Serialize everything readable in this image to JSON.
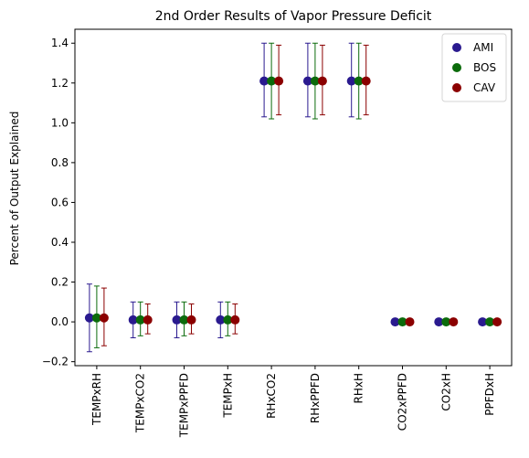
{
  "chart_data": {
    "type": "scatter",
    "title": "2nd Order Results of Vapor Pressure Deficit",
    "xlabel": "",
    "ylabel": "Percent of Output Explained",
    "categories": [
      "TEMPxRH",
      "TEMPxCO2",
      "TEMPxPPFD",
      "TEMPxH",
      "RHxCO2",
      "RHxPPFD",
      "RHxH",
      "CO2xPPFD",
      "CO2xH",
      "PPFDxH"
    ],
    "ylim": [
      -0.22,
      1.47
    ],
    "yticks": [
      -0.2,
      0.0,
      0.2,
      0.4,
      0.6,
      0.8,
      1.0,
      1.2,
      1.4
    ],
    "ytick_labels": [
      "−0.2",
      "0.0",
      "0.2",
      "0.4",
      "0.6",
      "0.8",
      "1.0",
      "1.2",
      "1.4"
    ],
    "grid": false,
    "legend": "top-right",
    "series": [
      {
        "name": "AMI",
        "color": "#2a1a8f",
        "values": [
          0.02,
          0.01,
          0.01,
          0.01,
          1.21,
          1.21,
          1.21,
          0.0,
          0.0,
          0.0
        ],
        "err_low": [
          -0.15,
          -0.08,
          -0.08,
          -0.08,
          1.03,
          1.03,
          1.03,
          0.0,
          0.0,
          0.0
        ],
        "err_high": [
          0.19,
          0.1,
          0.1,
          0.1,
          1.4,
          1.4,
          1.4,
          0.0,
          0.0,
          0.0
        ]
      },
      {
        "name": "BOS",
        "color": "#0b6b0b",
        "values": [
          0.02,
          0.01,
          0.01,
          0.01,
          1.21,
          1.21,
          1.21,
          0.0,
          0.0,
          0.0
        ],
        "err_low": [
          -0.13,
          -0.07,
          -0.07,
          -0.07,
          1.02,
          1.02,
          1.02,
          0.0,
          0.0,
          0.0
        ],
        "err_high": [
          0.18,
          0.1,
          0.1,
          0.1,
          1.4,
          1.4,
          1.4,
          0.0,
          0.0,
          0.0
        ]
      },
      {
        "name": "CAV",
        "color": "#8b0000",
        "values": [
          0.02,
          0.01,
          0.01,
          0.01,
          1.21,
          1.21,
          1.21,
          0.0,
          0.0,
          0.0
        ],
        "err_low": [
          -0.12,
          -0.06,
          -0.06,
          -0.06,
          1.04,
          1.04,
          1.04,
          0.0,
          0.0,
          0.0
        ],
        "err_high": [
          0.17,
          0.09,
          0.09,
          0.09,
          1.39,
          1.39,
          1.39,
          0.0,
          0.0,
          0.0
        ]
      }
    ]
  }
}
